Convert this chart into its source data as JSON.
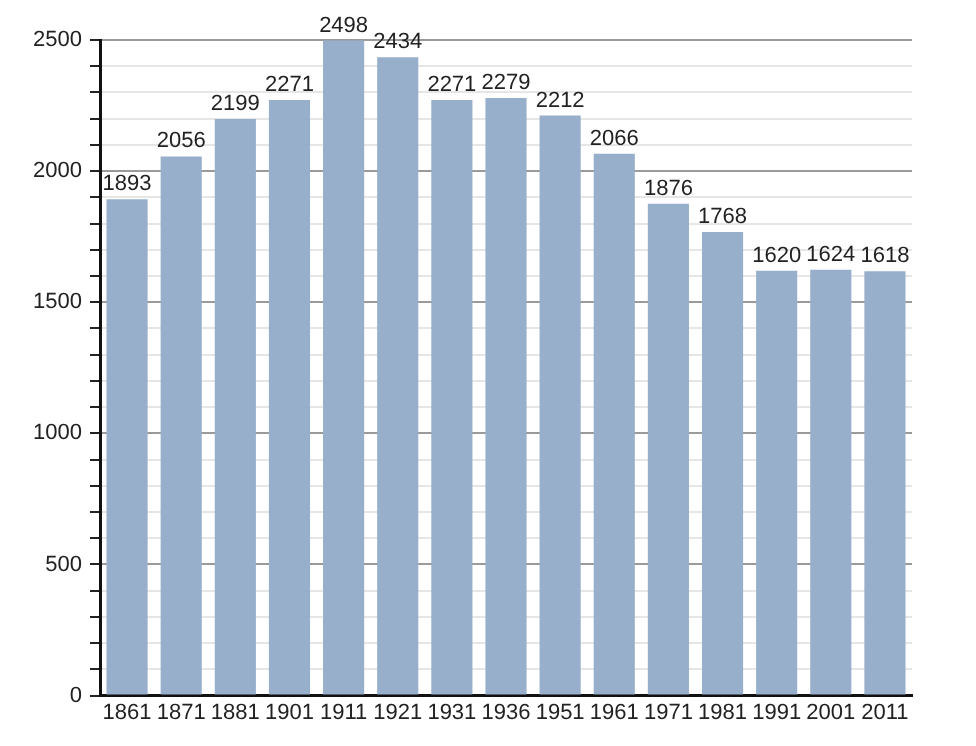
{
  "chart_data": {
    "type": "bar",
    "categories": [
      "1861",
      "1871",
      "1881",
      "1901",
      "1911",
      "1921",
      "1931",
      "1936",
      "1951",
      "1961",
      "1971",
      "1981",
      "1991",
      "2001",
      "2011"
    ],
    "values": [
      1893,
      2056,
      2199,
      2271,
      2498,
      2434,
      2271,
      2279,
      2212,
      2066,
      1876,
      1768,
      1620,
      1624,
      1618
    ],
    "color": "#97afcb",
    "ylim": [
      0,
      2500
    ],
    "yticks": [
      0,
      {
        "value": 100,
        "label": null
      },
      {
        "value": 200,
        "label": null
      },
      {
        "value": 300,
        "label": null
      },
      {
        "value": 400,
        "label": null
      },
      500,
      {
        "value": 600,
        "label": null
      },
      {
        "value": 700,
        "label": null
      },
      {
        "value": 800,
        "label": null
      },
      {
        "value": 900,
        "label": null
      },
      1000,
      {
        "value": 1100,
        "label": null
      },
      {
        "value": 1200,
        "label": null
      },
      {
        "value": 1300,
        "label": null
      },
      {
        "value": 1400,
        "label": null
      },
      1500,
      {
        "value": 1600,
        "label": null
      },
      {
        "value": 1700,
        "label": null
      },
      {
        "value": 1800,
        "label": null
      },
      {
        "value": 1900,
        "label": null
      },
      2000,
      {
        "value": 2100,
        "label": null
      },
      {
        "value": 2200,
        "label": null
      },
      {
        "value": 2300,
        "label": null
      },
      {
        "value": 2400,
        "label": null
      },
      2500
    ],
    "grid": "y",
    "data_labels": true
  }
}
